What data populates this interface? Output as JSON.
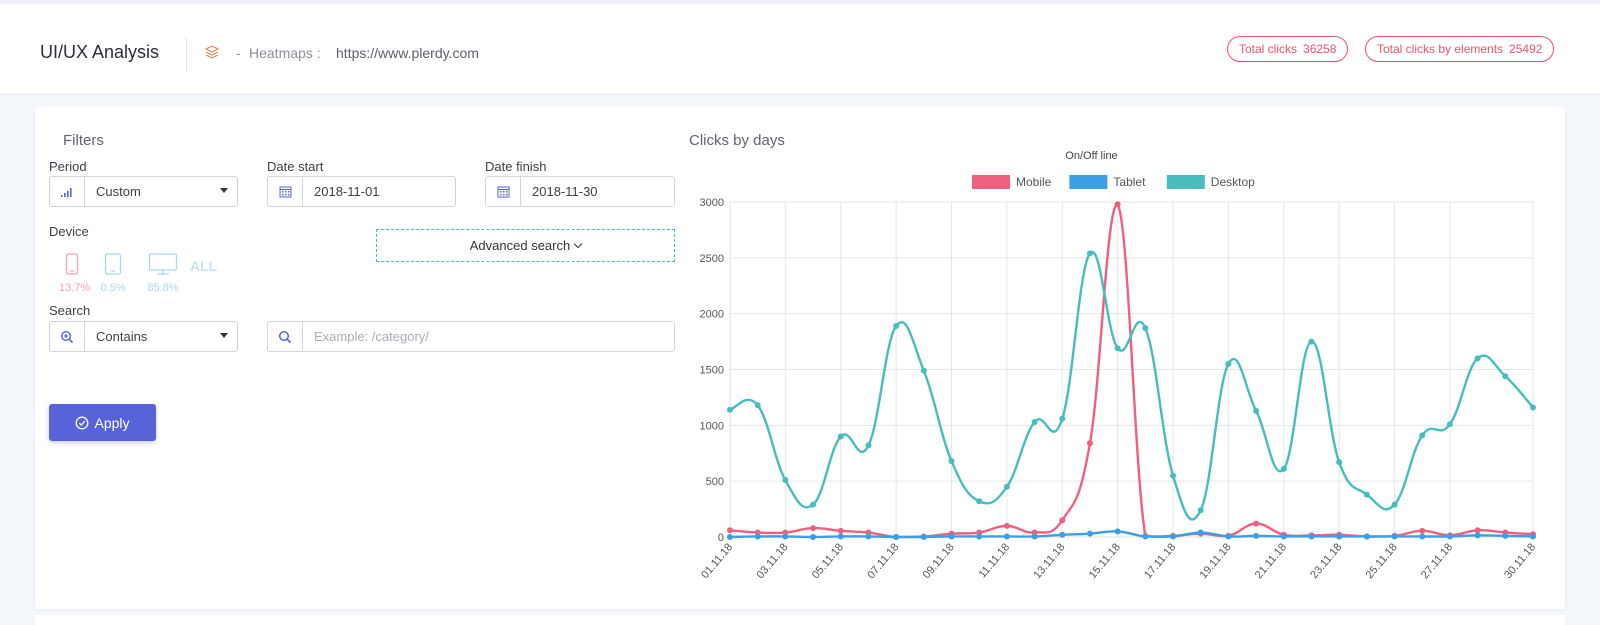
{
  "header": {
    "title": "UI/UX Analysis",
    "crumb_dash": "-",
    "crumb_label": "Heatmaps :",
    "crumb_url": "https://www.plerdy.com",
    "badges": [
      {
        "label": "Total clicks",
        "value": "36258"
      },
      {
        "label": "Total clicks by elements",
        "value": "25492"
      }
    ]
  },
  "filters": {
    "title": "Filters",
    "period": {
      "label": "Period",
      "value": "Custom"
    },
    "date_start": {
      "label": "Date start",
      "value": "2018-11-01"
    },
    "date_finish": {
      "label": "Date finish",
      "value": "2018-11-30"
    },
    "device": {
      "label": "Device",
      "items": [
        {
          "icon": "mobile-icon",
          "pct": "13.7%",
          "color": "#f6a3ad"
        },
        {
          "icon": "tablet-icon",
          "pct": "0.5%",
          "color": "#a9d7ea"
        },
        {
          "icon": "desktop-icon",
          "pct": "85.8%",
          "color": "#a9d7ea"
        }
      ],
      "all_label": "ALL"
    },
    "advanced_search_label": "Advanced search",
    "search": {
      "label": "Search",
      "mode": "Contains",
      "placeholder": "Example: /category/"
    },
    "apply_label": "Apply"
  },
  "colors": {
    "accent": "#5863d8",
    "badge": "#e9536a",
    "mobile": "#f0607e",
    "tablet": "#3b9fe3",
    "desktop": "#47bdbd"
  },
  "chart_data": {
    "type": "line",
    "title": "Clicks by days",
    "subtitle": "On/Off line",
    "legend_position": "top",
    "grid": true,
    "ylim": [
      0,
      3000
    ],
    "yticks": [
      0,
      500,
      1000,
      1500,
      2000,
      2500,
      3000
    ],
    "x": [
      "01.11.18",
      "02.11.18",
      "03.11.18",
      "04.11.18",
      "05.11.18",
      "06.11.18",
      "07.11.18",
      "08.11.18",
      "09.11.18",
      "10.11.18",
      "11.11.18",
      "12.11.18",
      "13.11.18",
      "14.11.18",
      "15.11.18",
      "16.11.18",
      "17.11.18",
      "18.11.18",
      "19.11.18",
      "20.11.18",
      "21.11.18",
      "22.11.18",
      "23.11.18",
      "24.11.18",
      "25.11.18",
      "26.11.18",
      "27.11.18",
      "28.11.18",
      "29.11.18",
      "30.11.18"
    ],
    "xtick_labels": [
      "01.11.18",
      "03.11.18",
      "05.11.18",
      "07.11.18",
      "09.11.18",
      "11.11.18",
      "13.11.18",
      "15.11.18",
      "17.11.18",
      "19.11.18",
      "21.11.18",
      "23.11.18",
      "25.11.18",
      "27.11.18",
      "30.11.18"
    ],
    "series": [
      {
        "name": "Mobile",
        "color": "#f0607e",
        "values": [
          60,
          40,
          40,
          80,
          55,
          40,
          0,
          5,
          30,
          40,
          100,
          40,
          150,
          840,
          2980,
          10,
          10,
          30,
          10,
          120,
          20,
          15,
          20,
          5,
          10,
          55,
          15,
          60,
          40,
          25
        ]
      },
      {
        "name": "Tablet",
        "color": "#3b9fe3",
        "values": [
          0,
          5,
          5,
          0,
          5,
          5,
          0,
          0,
          5,
          5,
          5,
          5,
          20,
          30,
          50,
          5,
          5,
          40,
          5,
          10,
          5,
          5,
          5,
          5,
          5,
          5,
          5,
          15,
          10,
          5
        ]
      },
      {
        "name": "Desktop",
        "color": "#47bdbd",
        "values": [
          1140,
          1180,
          510,
          290,
          900,
          820,
          1890,
          1490,
          680,
          320,
          450,
          1030,
          1060,
          2540,
          1690,
          1870,
          550,
          240,
          1550,
          1130,
          610,
          1750,
          670,
          380,
          290,
          910,
          1010,
          1600,
          1440,
          1160
        ]
      }
    ]
  }
}
